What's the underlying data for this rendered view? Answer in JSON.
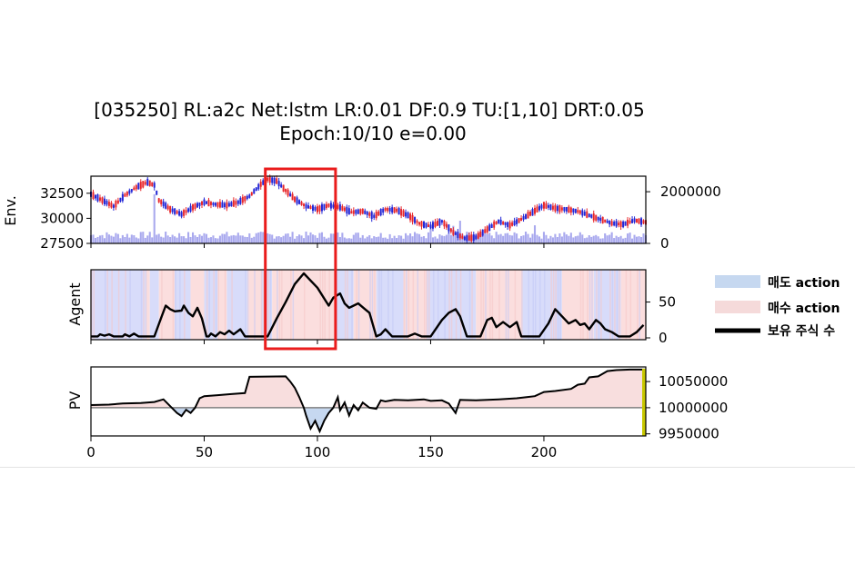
{
  "chart_data": {
    "title_lines": [
      "[035250] RL:a2c Net:lstm LR:0.01 DF:0.9 TU:[1,10] DRT:0.05",
      "Epoch:10/10 e=0.00"
    ],
    "x_range": [
      0,
      245
    ],
    "x_ticks": [
      0,
      50,
      100,
      150,
      200
    ],
    "legend": [
      {
        "label": "매도 action",
        "color": "#c6d8f0",
        "kind": "patch"
      },
      {
        "label": "매수 action",
        "color": "#f5dada",
        "kind": "patch"
      },
      {
        "label": "보유 주식 수",
        "color": "#000000",
        "kind": "line"
      }
    ],
    "highlight_box_x": [
      77,
      108
    ],
    "panels": [
      {
        "ylabel": "Env.",
        "type": "candlestick",
        "ylim": [
          27500,
          34200
        ],
        "y_ticks": [
          27500,
          30000,
          32500
        ],
        "right_ylim": [
          0,
          2600000
        ],
        "right_ticks": [
          "0",
          "2000000"
        ],
        "up_color": "#e8262a",
        "down_color": "#2226d6",
        "volume_color": "#a9a9ee",
        "price_points": [
          [
            0,
            32400
          ],
          [
            5,
            31800
          ],
          [
            10,
            31200
          ],
          [
            15,
            32300
          ],
          [
            20,
            33100
          ],
          [
            25,
            33600
          ],
          [
            28,
            33300
          ],
          [
            30,
            31800
          ],
          [
            35,
            30900
          ],
          [
            40,
            30400
          ],
          [
            45,
            31100
          ],
          [
            50,
            31600
          ],
          [
            55,
            31400
          ],
          [
            60,
            31300
          ],
          [
            65,
            31600
          ],
          [
            70,
            32200
          ],
          [
            75,
            33400
          ],
          [
            78,
            33900
          ],
          [
            82,
            33700
          ],
          [
            85,
            33000
          ],
          [
            90,
            31900
          ],
          [
            95,
            31200
          ],
          [
            100,
            30900
          ],
          [
            105,
            31300
          ],
          [
            110,
            31100
          ],
          [
            115,
            30600
          ],
          [
            120,
            30700
          ],
          [
            125,
            30200
          ],
          [
            130,
            30900
          ],
          [
            135,
            30800
          ],
          [
            140,
            30300
          ],
          [
            145,
            29500
          ],
          [
            150,
            29200
          ],
          [
            155,
            29700
          ],
          [
            160,
            28600
          ],
          [
            165,
            28000
          ],
          [
            170,
            28100
          ],
          [
            175,
            28900
          ],
          [
            180,
            29700
          ],
          [
            185,
            29300
          ],
          [
            190,
            29900
          ],
          [
            195,
            30600
          ],
          [
            200,
            31300
          ],
          [
            205,
            31000
          ],
          [
            210,
            30900
          ],
          [
            215,
            30700
          ],
          [
            220,
            30300
          ],
          [
            225,
            29900
          ],
          [
            230,
            29500
          ],
          [
            235,
            29400
          ],
          [
            240,
            29800
          ],
          [
            245,
            29600
          ]
        ]
      },
      {
        "ylabel": "Agent",
        "type": "line",
        "ylim": [
          0,
          90
        ],
        "y_ticks": [
          0,
          50
        ],
        "line_color": "#000000",
        "sell_color": "#d8dcfa",
        "buy_color": "#fbdede",
        "holdings": [
          [
            0,
            2
          ],
          [
            3,
            2
          ],
          [
            4,
            5
          ],
          [
            6,
            3
          ],
          [
            8,
            5
          ],
          [
            10,
            2
          ],
          [
            14,
            2
          ],
          [
            15,
            5
          ],
          [
            17,
            2
          ],
          [
            19,
            6
          ],
          [
            21,
            2
          ],
          [
            25,
            2
          ],
          [
            28,
            2
          ],
          [
            31,
            28
          ],
          [
            33,
            45
          ],
          [
            35,
            40
          ],
          [
            37,
            37
          ],
          [
            40,
            38
          ],
          [
            41,
            45
          ],
          [
            43,
            35
          ],
          [
            45,
            30
          ],
          [
            47,
            42
          ],
          [
            49,
            27
          ],
          [
            51,
            2
          ],
          [
            52,
            2
          ],
          [
            53,
            6
          ],
          [
            55,
            2
          ],
          [
            57,
            8
          ],
          [
            59,
            5
          ],
          [
            61,
            10
          ],
          [
            63,
            5
          ],
          [
            66,
            12
          ],
          [
            68,
            2
          ],
          [
            70,
            2
          ],
          [
            78,
            2
          ],
          [
            82,
            27
          ],
          [
            86,
            50
          ],
          [
            90,
            75
          ],
          [
            94,
            90
          ],
          [
            97,
            80
          ],
          [
            100,
            70
          ],
          [
            103,
            55
          ],
          [
            105,
            45
          ],
          [
            107,
            56
          ],
          [
            110,
            62
          ],
          [
            112,
            48
          ],
          [
            114,
            42
          ],
          [
            116,
            45
          ],
          [
            118,
            48
          ],
          [
            121,
            40
          ],
          [
            123,
            35
          ],
          [
            126,
            2
          ],
          [
            128,
            5
          ],
          [
            130,
            12
          ],
          [
            133,
            2
          ],
          [
            140,
            2
          ],
          [
            143,
            6
          ],
          [
            146,
            2
          ],
          [
            150,
            2
          ],
          [
            155,
            25
          ],
          [
            158,
            35
          ],
          [
            161,
            40
          ],
          [
            163,
            30
          ],
          [
            166,
            2
          ],
          [
            172,
            2
          ],
          [
            175,
            25
          ],
          [
            177,
            28
          ],
          [
            179,
            15
          ],
          [
            182,
            22
          ],
          [
            185,
            15
          ],
          [
            188,
            22
          ],
          [
            190,
            2
          ],
          [
            198,
            2
          ],
          [
            202,
            20
          ],
          [
            205,
            40
          ],
          [
            208,
            30
          ],
          [
            211,
            20
          ],
          [
            214,
            25
          ],
          [
            216,
            18
          ],
          [
            218,
            20
          ],
          [
            220,
            12
          ],
          [
            223,
            25
          ],
          [
            225,
            20
          ],
          [
            227,
            12
          ],
          [
            230,
            8
          ],
          [
            233,
            2
          ],
          [
            238,
            2
          ],
          [
            241,
            8
          ],
          [
            244,
            18
          ]
        ],
        "action_bands": [
          [
            0,
            24,
            "s"
          ],
          [
            24,
            26,
            "b"
          ],
          [
            26,
            30,
            "s"
          ],
          [
            30,
            37,
            "b"
          ],
          [
            37,
            44,
            "s"
          ],
          [
            44,
            50,
            "b"
          ],
          [
            50,
            56,
            "s"
          ],
          [
            56,
            60,
            "b"
          ],
          [
            60,
            69,
            "s"
          ],
          [
            69,
            75,
            "b"
          ],
          [
            75,
            80,
            "s"
          ],
          [
            80,
            108,
            "b"
          ],
          [
            108,
            116,
            "s"
          ],
          [
            116,
            126,
            "b"
          ],
          [
            126,
            138,
            "s"
          ],
          [
            138,
            148,
            "b"
          ],
          [
            148,
            170,
            "s"
          ],
          [
            170,
            190,
            "b"
          ],
          [
            190,
            208,
            "s"
          ],
          [
            208,
            222,
            "b"
          ],
          [
            222,
            234,
            "s"
          ],
          [
            234,
            245,
            "b"
          ]
        ]
      },
      {
        "ylabel": "PV",
        "type": "area",
        "ylim": [
          9946000,
          10078000
        ],
        "y_ticks": [
          9950000,
          10000000,
          10050000
        ],
        "baseline": 10000000,
        "line_color": "#000000",
        "above_fill": "#f8dede",
        "below_fill": "#c6d8f0",
        "pv": [
          [
            0,
            10005000
          ],
          [
            8,
            10006000
          ],
          [
            14,
            10008000
          ],
          [
            22,
            10009000
          ],
          [
            28,
            10011000
          ],
          [
            32,
            10016000
          ],
          [
            35,
            10003000
          ],
          [
            38,
            9990000
          ],
          [
            40,
            9984000
          ],
          [
            42,
            9996000
          ],
          [
            44,
            9990000
          ],
          [
            46,
            10000000
          ],
          [
            48,
            10018000
          ],
          [
            50,
            10022000
          ],
          [
            56,
            10024000
          ],
          [
            62,
            10026000
          ],
          [
            68,
            10028000
          ],
          [
            70,
            10059000
          ],
          [
            86,
            10060000
          ],
          [
            88,
            10050000
          ],
          [
            90,
            10038000
          ],
          [
            92,
            10020000
          ],
          [
            94,
            10000000
          ],
          [
            95,
            9985000
          ],
          [
            97,
            9960000
          ],
          [
            99,
            9975000
          ],
          [
            101,
            9955000
          ],
          [
            103,
            9975000
          ],
          [
            105,
            9990000
          ],
          [
            107,
            10000000
          ],
          [
            109,
            10020000
          ],
          [
            110,
            9995000
          ],
          [
            112,
            10010000
          ],
          [
            114,
            9985000
          ],
          [
            116,
            10005000
          ],
          [
            118,
            9995000
          ],
          [
            120,
            10010000
          ],
          [
            123,
            10000000
          ],
          [
            126,
            9998000
          ],
          [
            128,
            10014000
          ],
          [
            130,
            10012000
          ],
          [
            134,
            10015000
          ],
          [
            140,
            10014000
          ],
          [
            147,
            10016000
          ],
          [
            150,
            10013000
          ],
          [
            155,
            10014000
          ],
          [
            158,
            10008000
          ],
          [
            161,
            9990000
          ],
          [
            163,
            10015000
          ],
          [
            170,
            10014000
          ],
          [
            180,
            10016000
          ],
          [
            188,
            10018000
          ],
          [
            192,
            10020000
          ],
          [
            196,
            10022000
          ],
          [
            200,
            10030000
          ],
          [
            205,
            10032000
          ],
          [
            212,
            10036000
          ],
          [
            215,
            10044000
          ],
          [
            218,
            10046000
          ],
          [
            220,
            10058000
          ],
          [
            224,
            10060000
          ],
          [
            228,
            10070000
          ],
          [
            232,
            10072000
          ],
          [
            238,
            10073000
          ],
          [
            243,
            10073000
          ],
          [
            245,
            10073000
          ]
        ],
        "end_marker_color": "#c8c800"
      }
    ]
  }
}
